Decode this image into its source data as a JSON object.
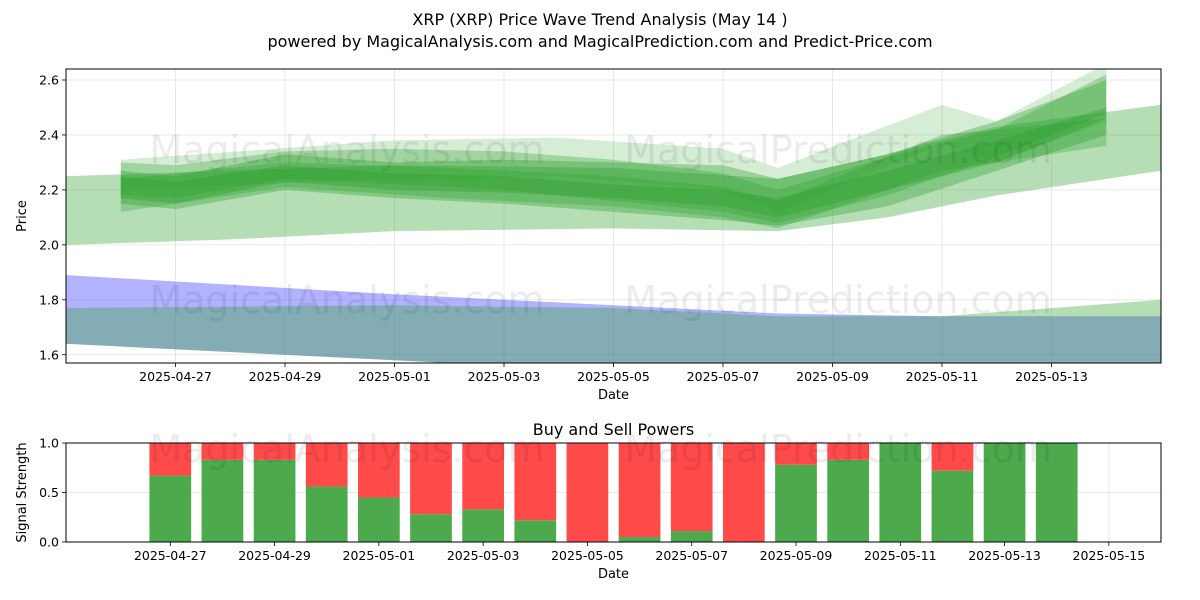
{
  "title_line1": "XRP (XRP) Price Wave Trend Analysis (May 14 )",
  "title_line2": "powered by MagicalAnalysis.com and MagicalPrediction.com and Predict-Price.com",
  "watermarks": [
    "MagicalAnalysis.com",
    "MagicalPrediction.com"
  ],
  "colors": {
    "green_band": "#2ca02c",
    "blue_band": "#6666ff",
    "overlap_band": "#7aa0ae",
    "buy": "#4caa4c",
    "sell": "#ff4a4a"
  },
  "chart_data": [
    {
      "type": "area",
      "title": "",
      "xlabel": "Date",
      "ylabel": "Price",
      "xlim": [
        "2025-04-25",
        "2025-05-15"
      ],
      "ylim": [
        1.57,
        2.64
      ],
      "x_ticks": [
        "2025-04-27",
        "2025-04-29",
        "2025-05-01",
        "2025-05-03",
        "2025-05-05",
        "2025-05-07",
        "2025-05-09",
        "2025-05-11",
        "2025-05-13"
      ],
      "y_ticks": [
        "1.6",
        "1.8",
        "2.0",
        "2.2",
        "2.4",
        "2.6"
      ],
      "grid": true,
      "series": [
        {
          "color": "green",
          "opacity": 0.35,
          "x": [
            "2025-04-26",
            "2025-04-27",
            "2025-04-29",
            "2025-05-01",
            "2025-05-03",
            "2025-05-05",
            "2025-05-07",
            "2025-05-08",
            "2025-05-10",
            "2025-05-12",
            "2025-05-14"
          ],
          "upper": [
            2.27,
            2.25,
            2.33,
            2.3,
            2.31,
            2.3,
            2.29,
            2.24,
            2.33,
            2.45,
            2.6
          ],
          "lower": [
            2.17,
            2.15,
            2.23,
            2.2,
            2.19,
            2.17,
            2.14,
            2.1,
            2.2,
            2.3,
            2.46
          ]
        },
        {
          "color": "green",
          "opacity": 0.35,
          "x": [
            "2025-04-26",
            "2025-04-27",
            "2025-04-29",
            "2025-05-01",
            "2025-05-03",
            "2025-05-05",
            "2025-05-07",
            "2025-05-08",
            "2025-05-10",
            "2025-05-12",
            "2025-05-14"
          ],
          "upper": [
            2.25,
            2.23,
            2.29,
            2.26,
            2.25,
            2.22,
            2.2,
            2.17,
            2.27,
            2.38,
            2.5
          ],
          "lower": [
            2.15,
            2.13,
            2.2,
            2.17,
            2.15,
            2.12,
            2.09,
            2.07,
            2.14,
            2.27,
            2.4
          ]
        },
        {
          "color": "green",
          "opacity": 0.3,
          "x": [
            "2025-04-26",
            "2025-04-27",
            "2025-04-29",
            "2025-05-01",
            "2025-05-03",
            "2025-05-05",
            "2025-05-07",
            "2025-05-08",
            "2025-05-10",
            "2025-05-12",
            "2025-05-14"
          ],
          "upper": [
            2.3,
            2.29,
            2.34,
            2.35,
            2.34,
            2.31,
            2.26,
            2.2,
            2.32,
            2.42,
            2.62
          ],
          "lower": [
            2.18,
            2.17,
            2.24,
            2.22,
            2.2,
            2.16,
            2.12,
            2.08,
            2.18,
            2.32,
            2.48
          ]
        },
        {
          "color": "green",
          "opacity": 0.3,
          "x": [
            "2025-04-26",
            "2025-04-29",
            "2025-05-02",
            "2025-05-05",
            "2025-05-07",
            "2025-05-08",
            "2025-05-11",
            "2025-05-14"
          ],
          "upper": [
            2.24,
            2.3,
            2.28,
            2.25,
            2.21,
            2.16,
            2.4,
            2.46
          ],
          "lower": [
            2.12,
            2.21,
            2.17,
            2.14,
            2.1,
            2.06,
            2.27,
            2.36
          ]
        },
        {
          "color": "green",
          "opacity": 0.2,
          "x": [
            "2025-04-26",
            "2025-05-01",
            "2025-05-04",
            "2025-05-07",
            "2025-05-08",
            "2025-05-11",
            "2025-05-12",
            "2025-05-14"
          ],
          "upper": [
            2.31,
            2.38,
            2.39,
            2.35,
            2.28,
            2.51,
            2.45,
            2.66
          ],
          "lower": [
            2.2,
            2.24,
            2.25,
            2.2,
            2.12,
            2.37,
            2.3,
            2.45
          ]
        },
        {
          "color": "green",
          "opacity": 0.35,
          "x": [
            "2025-04-25",
            "2025-04-28",
            "2025-05-01",
            "2025-05-05",
            "2025-05-08",
            "2025-05-10",
            "2025-05-12",
            "2025-05-15"
          ],
          "upper": [
            2.25,
            2.27,
            2.29,
            2.28,
            2.24,
            2.33,
            2.43,
            2.51
          ],
          "lower": [
            2.0,
            2.02,
            2.05,
            2.06,
            2.05,
            2.1,
            2.18,
            2.27
          ]
        },
        {
          "color": "blue",
          "opacity": 0.5,
          "x": [
            "2025-04-25",
            "2025-05-01",
            "2025-05-05",
            "2025-05-08",
            "2025-05-11",
            "2025-05-15"
          ],
          "upper": [
            1.89,
            1.82,
            1.78,
            1.75,
            1.74,
            1.74
          ],
          "lower": [
            1.64,
            1.58,
            1.54,
            1.52,
            1.52,
            1.52
          ]
        },
        {
          "color": "green",
          "opacity": 0.35,
          "x": [
            "2025-04-25",
            "2025-05-01",
            "2025-05-05",
            "2025-05-08",
            "2025-05-11",
            "2025-05-15"
          ],
          "upper": [
            1.77,
            1.78,
            1.77,
            1.74,
            1.74,
            1.8
          ],
          "lower": [
            1.64,
            1.58,
            1.54,
            1.52,
            1.52,
            1.52
          ]
        }
      ]
    },
    {
      "type": "bar",
      "title": "Buy and Sell Powers",
      "xlabel": "Date",
      "ylabel": "Signal Strength",
      "xlim": [
        "2025-04-25",
        "2025-05-16"
      ],
      "ylim": [
        0,
        1.0
      ],
      "x_ticks": [
        "2025-04-27",
        "2025-04-29",
        "2025-05-01",
        "2025-05-03",
        "2025-05-05",
        "2025-05-07",
        "2025-05-09",
        "2025-05-11",
        "2025-05-13",
        "2025-05-15"
      ],
      "y_ticks": [
        "0.0",
        "0.5",
        "1.0"
      ],
      "grid": true,
      "categories": [
        "2025-04-27",
        "2025-04-28",
        "2025-04-29",
        "2025-04-30",
        "2025-05-01",
        "2025-05-02",
        "2025-05-03",
        "2025-05-04",
        "2025-05-05",
        "2025-05-06",
        "2025-05-07",
        "2025-05-08",
        "2025-05-09",
        "2025-05-10",
        "2025-05-11",
        "2025-05-12",
        "2025-05-13",
        "2025-05-14"
      ],
      "series": [
        {
          "color": "buy",
          "values": [
            0.67,
            0.83,
            0.83,
            0.56,
            0.45,
            0.28,
            0.33,
            0.22,
            0.0,
            0.05,
            0.11,
            0.0,
            0.78,
            0.83,
            1.0,
            0.72,
            1.0,
            1.0
          ]
        },
        {
          "color": "sell",
          "values": [
            0.33,
            0.17,
            0.17,
            0.44,
            0.55,
            0.72,
            0.67,
            0.78,
            1.0,
            0.95,
            0.89,
            1.0,
            0.22,
            0.17,
            0.0,
            0.28,
            0.0,
            0.0
          ]
        }
      ]
    }
  ]
}
